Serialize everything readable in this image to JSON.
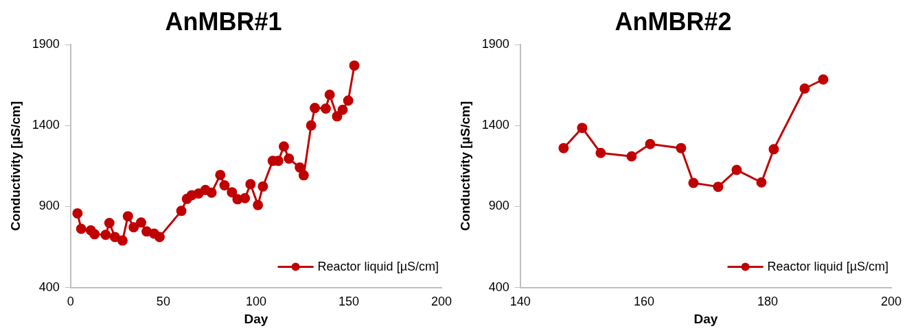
{
  "chart_data": [
    {
      "type": "line",
      "title": "AnMBR#1",
      "xlabel": "Day",
      "ylabel": "Conductivity [µS/cm]",
      "xlim": [
        0,
        200
      ],
      "xticks": [
        0,
        50,
        100,
        150,
        200
      ],
      "ylim": [
        400,
        1900
      ],
      "yticks": [
        400,
        900,
        1400,
        1900
      ],
      "grid": false,
      "legend": "bottom right",
      "marker": "circle",
      "line_style": "solid",
      "series": [
        {
          "name": "Reactor liquid [µS/cm]",
          "color": "#c00000",
          "x": [
            3.7,
            5.7,
            10.9,
            12.9,
            18.9,
            20.9,
            23.9,
            28,
            30.9,
            34,
            38,
            41,
            45,
            48,
            59.7,
            62.7,
            65.3,
            69,
            72.7,
            76,
            80.7,
            83,
            87,
            90,
            94,
            97,
            101,
            103.7,
            109,
            112,
            115,
            117.7,
            123.6,
            125.7,
            129.7,
            131.7,
            137.6,
            139.7,
            143.7,
            146.7,
            149.7,
            153
          ],
          "values": [
            858,
            762,
            753,
            729,
            725,
            798,
            712,
            690,
            840,
            772,
            801,
            746,
            733,
            712,
            873,
            947,
            970,
            980,
            1002,
            986,
            1095,
            1031,
            988,
            945,
            952,
            1038,
            909,
            1024,
            1182,
            1182,
            1271,
            1196,
            1141,
            1093,
            1401,
            1509,
            1505,
            1591,
            1457,
            1498,
            1555,
            1771
          ]
        }
      ]
    },
    {
      "type": "line",
      "title": "AnMBR#2",
      "xlabel": "Day",
      "ylabel": "Conductivity [µS/cm]",
      "xlim": [
        140,
        200
      ],
      "xticks": [
        140,
        160,
        180,
        200
      ],
      "ylim": [
        400,
        1900
      ],
      "yticks": [
        400,
        900,
        1400,
        1900
      ],
      "grid": false,
      "legend": "bottom right",
      "marker": "circle",
      "line_style": "solid",
      "series": [
        {
          "name": "Reactor liquid [µS/cm]",
          "color": "#c00000",
          "x": [
            147,
            150,
            153,
            158,
            161,
            166,
            168,
            172,
            175,
            179,
            181,
            186,
            189
          ],
          "values": [
            1261,
            1386,
            1231,
            1210,
            1286,
            1261,
            1046,
            1022,
            1126,
            1049,
            1254,
            1629,
            1685
          ]
        }
      ]
    }
  ]
}
